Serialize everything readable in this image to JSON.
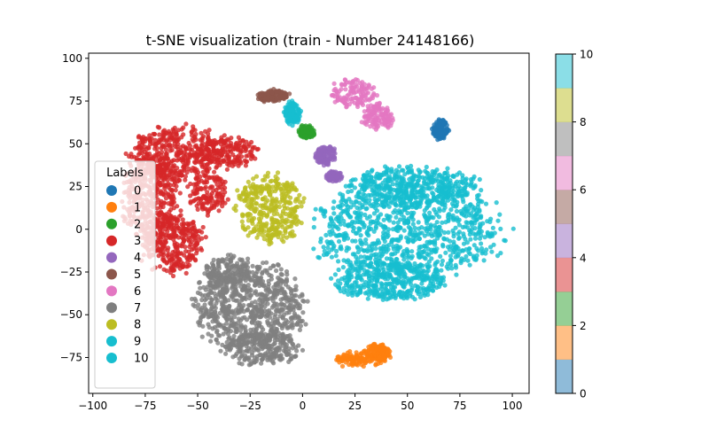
{
  "chart_data": {
    "type": "scatter",
    "title": "t-SNE visualization (train - Number 24148166)",
    "xlabel": "",
    "ylabel": "",
    "xlim": [
      -102,
      108
    ],
    "ylim": [
      -96,
      103
    ],
    "xticks": [
      -100,
      -75,
      -50,
      -25,
      0,
      25,
      50,
      75,
      100
    ],
    "yticks": [
      -75,
      -50,
      -25,
      0,
      25,
      50,
      75,
      100
    ],
    "grid": false,
    "legend": {
      "title": "Labels",
      "placement": "center-left",
      "entries": [
        {
          "label": "0",
          "color": "#1f77b4"
        },
        {
          "label": "1",
          "color": "#ff7f0e"
        },
        {
          "label": "2",
          "color": "#2ca02c"
        },
        {
          "label": "3",
          "color": "#d62728"
        },
        {
          "label": "4",
          "color": "#9467bd"
        },
        {
          "label": "5",
          "color": "#8c564b"
        },
        {
          "label": "6",
          "color": "#e377c2"
        },
        {
          "label": "7",
          "color": "#7f7f7f"
        },
        {
          "label": "8",
          "color": "#bcbd22"
        },
        {
          "label": "9",
          "color": "#17becf"
        },
        {
          "label": "10",
          "color": "#17becf"
        }
      ]
    },
    "clusters": [
      {
        "label": "3",
        "color": "#d62728",
        "blobs": [
          {
            "cx": -60,
            "cy": 45,
            "rx": 24,
            "ry": 16
          },
          {
            "cx": -72,
            "cy": 18,
            "rx": 14,
            "ry": 26
          },
          {
            "cx": -62,
            "cy": -8,
            "rx": 16,
            "ry": 18
          },
          {
            "cx": -35,
            "cy": 45,
            "rx": 14,
            "ry": 10
          },
          {
            "cx": -45,
            "cy": 20,
            "rx": 10,
            "ry": 12
          }
        ]
      },
      {
        "label": "7",
        "color": "#7f7f7f",
        "blobs": [
          {
            "cx": -25,
            "cy": -45,
            "rx": 27,
            "ry": 26
          },
          {
            "cx": -20,
            "cy": -70,
            "rx": 20,
            "ry": 10
          },
          {
            "cx": -35,
            "cy": -25,
            "rx": 12,
            "ry": 10
          }
        ]
      },
      {
        "label": "8",
        "color": "#bcbd22",
        "blobs": [
          {
            "cx": -15,
            "cy": 12,
            "rx": 17,
            "ry": 20
          }
        ]
      },
      {
        "label": "9",
        "color": "#17becf",
        "blobs": [
          {
            "cx": 50,
            "cy": 0,
            "rx": 47,
            "ry": 30
          },
          {
            "cx": 52,
            "cy": 25,
            "rx": 32,
            "ry": 12
          },
          {
            "cx": 42,
            "cy": -30,
            "rx": 28,
            "ry": 12
          }
        ]
      },
      {
        "label": "1",
        "color": "#ff7f0e",
        "blobs": [
          {
            "cx": 28,
            "cy": -76,
            "rx": 14,
            "ry": 5
          },
          {
            "cx": 36,
            "cy": -72,
            "rx": 6,
            "ry": 5
          }
        ]
      },
      {
        "label": "6",
        "color": "#e377c2",
        "blobs": [
          {
            "cx": 24,
            "cy": 80,
            "rx": 11,
            "ry": 9
          },
          {
            "cx": 36,
            "cy": 66,
            "rx": 8,
            "ry": 8
          }
        ]
      },
      {
        "label": "0",
        "color": "#1f77b4",
        "blobs": [
          {
            "cx": 66,
            "cy": 58,
            "rx": 4,
            "ry": 6
          }
        ]
      },
      {
        "label": "5",
        "color": "#8c564b",
        "blobs": [
          {
            "cx": -14,
            "cy": 78,
            "rx": 8,
            "ry": 4
          }
        ]
      },
      {
        "label": "2",
        "color": "#2ca02c",
        "blobs": [
          {
            "cx": 2,
            "cy": 57,
            "rx": 4,
            "ry": 4
          }
        ]
      },
      {
        "label": "4",
        "color": "#9467bd",
        "blobs": [
          {
            "cx": 11,
            "cy": 43,
            "rx": 5,
            "ry": 6
          },
          {
            "cx": 15,
            "cy": 31,
            "rx": 4,
            "ry": 3
          }
        ]
      },
      {
        "label": "10",
        "color": "#17becf",
        "blobs": [
          {
            "cx": -5,
            "cy": 68,
            "rx": 4,
            "ry": 7
          }
        ]
      }
    ],
    "colorbar": {
      "min": 0,
      "max": 10,
      "ticks": [
        0,
        2,
        4,
        6,
        8,
        10
      ],
      "colors": [
        "#1f77b4",
        "#ff7f0e",
        "#2ca02c",
        "#d62728",
        "#9467bd",
        "#8c564b",
        "#e377c2",
        "#7f7f7f",
        "#bcbd22",
        "#17becf"
      ],
      "alpha": 0.5
    }
  }
}
